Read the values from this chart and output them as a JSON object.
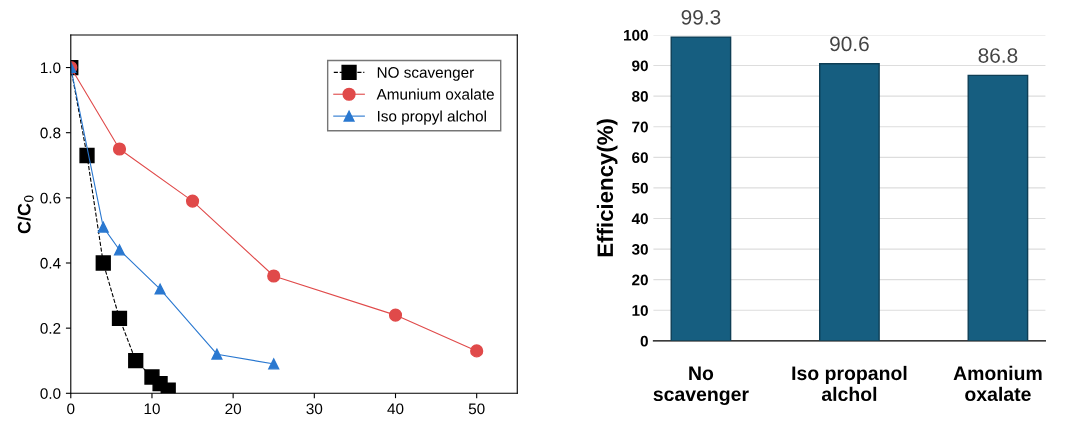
{
  "chart_data": [
    {
      "type": "line",
      "ylabel": "C/C$_{0}$",
      "xlim": [
        0,
        55
      ],
      "ylim": [
        0,
        1.1
      ],
      "xticks": [
        0,
        10,
        20,
        30,
        40,
        50
      ],
      "yticks": [
        {
          "value": 0,
          "label": "0.0"
        },
        0.2,
        0.4,
        0.6,
        0.8,
        {
          "value": 1,
          "label": "1.0"
        }
      ],
      "legend": "top right",
      "grid": false,
      "series": [
        {
          "name": "NO scavenger",
          "color": "#000000",
          "marker": "square",
          "line_style": "dashed",
          "x": [
            0,
            2,
            4,
            6,
            8,
            10,
            11,
            12
          ],
          "values": [
            1.0,
            0.73,
            0.4,
            0.23,
            0.1,
            0.05,
            0.03,
            0.01
          ]
        },
        {
          "name": "Amunium oxalate",
          "color": "#e04a4a",
          "marker": "circle",
          "line_style": "solid",
          "x": [
            0,
            6,
            15,
            25,
            40,
            50
          ],
          "values": [
            1.0,
            0.75,
            0.59,
            0.36,
            0.24,
            0.13
          ]
        },
        {
          "name": "Iso propyl alchol",
          "color": "#2a78d0",
          "marker": "triangle",
          "line_style": "solid",
          "x": [
            0,
            4,
            6,
            11,
            18,
            25
          ],
          "values": [
            1.0,
            0.51,
            0.44,
            0.32,
            0.12,
            0.09
          ]
        }
      ]
    },
    {
      "type": "bar",
      "ylabel": "Efficiency(%)",
      "categories": [
        "No\nscavenger",
        "Iso propanol\nalchol",
        "Amonium\noxalate"
      ],
      "values": [
        99.3,
        90.6,
        86.8
      ],
      "color": "#165e80",
      "ylim": [
        0,
        100
      ],
      "yticks": [
        0,
        10,
        20,
        30,
        40,
        50,
        60,
        70,
        80,
        90,
        100
      ],
      "grid": "y",
      "data_labels": true
    }
  ]
}
